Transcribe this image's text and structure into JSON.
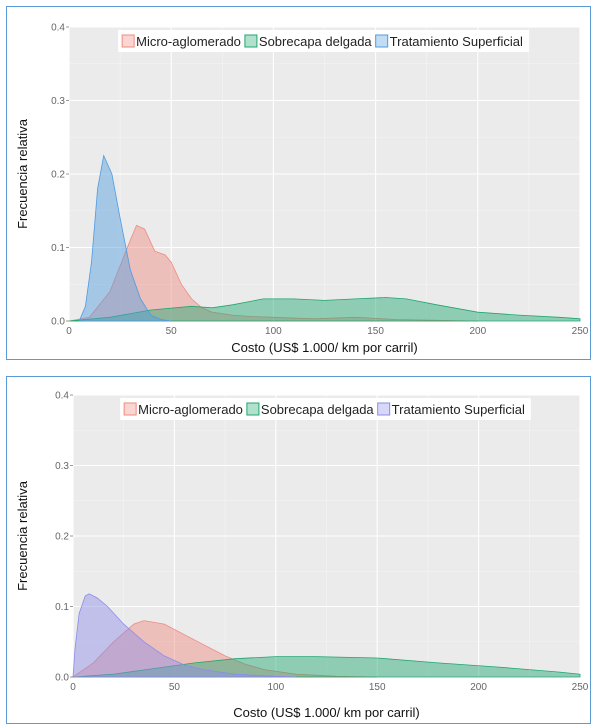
{
  "colors": {
    "micro": "#f08a80",
    "sobrecapa": "#1fa670",
    "tratamiento_top": "#4f9be0",
    "tratamiento_bottom": "#8c8ce8",
    "panel_bg": "#ebebeb",
    "border": "#5b9bd5"
  },
  "chart_data": [
    {
      "type": "area",
      "xlabel": "Costo (US$ 1.000/ km por carril)",
      "ylabel": "Frecuencia relativa",
      "xlim": [
        0,
        250
      ],
      "ylim": [
        0,
        0.4
      ],
      "xticks": [
        "0",
        "50",
        "100",
        "150",
        "200",
        "250"
      ],
      "yticks": [
        "0.0",
        "0.1",
        "0.2",
        "0.3",
        "0.4"
      ],
      "legend_position": "top",
      "grid": true,
      "series": [
        {
          "name": "Micro-aglomerado",
          "color": "micro",
          "points": [
            [
              0,
              0
            ],
            [
              10,
              0.005
            ],
            [
              20,
              0.04
            ],
            [
              30,
              0.11
            ],
            [
              33,
              0.13
            ],
            [
              37,
              0.125
            ],
            [
              42,
              0.095
            ],
            [
              47,
              0.09
            ],
            [
              50,
              0.08
            ],
            [
              55,
              0.05
            ],
            [
              60,
              0.03
            ],
            [
              65,
              0.018
            ],
            [
              70,
              0.012
            ],
            [
              80,
              0.008
            ],
            [
              90,
              0.006
            ],
            [
              100,
              0.005
            ],
            [
              120,
              0.003
            ],
            [
              140,
              0.005
            ],
            [
              160,
              0.002
            ],
            [
              180,
              0.001
            ],
            [
              200,
              0
            ]
          ]
        },
        {
          "name": "Sobrecapa delgada",
          "color": "sobrecapa",
          "points": [
            [
              0,
              0
            ],
            [
              20,
              0.005
            ],
            [
              40,
              0.015
            ],
            [
              60,
              0.02
            ],
            [
              70,
              0.018
            ],
            [
              80,
              0.022
            ],
            [
              95,
              0.03
            ],
            [
              110,
              0.03
            ],
            [
              125,
              0.028
            ],
            [
              140,
              0.03
            ],
            [
              155,
              0.032
            ],
            [
              165,
              0.03
            ],
            [
              180,
              0.022
            ],
            [
              200,
              0.012
            ],
            [
              220,
              0.008
            ],
            [
              240,
              0.005
            ],
            [
              250,
              0.003
            ]
          ]
        },
        {
          "name": "Tratamiento Superficial",
          "color": "tratamiento_top",
          "points": [
            [
              5,
              0
            ],
            [
              8,
              0.02
            ],
            [
              11,
              0.08
            ],
            [
              14,
              0.18
            ],
            [
              17,
              0.225
            ],
            [
              21,
              0.2
            ],
            [
              25,
              0.14
            ],
            [
              30,
              0.07
            ],
            [
              35,
              0.03
            ],
            [
              40,
              0.008
            ],
            [
              45,
              0.002
            ],
            [
              50,
              0
            ]
          ]
        }
      ]
    },
    {
      "type": "area",
      "xlabel": "Costo (US$ 1.000/ km por carril)",
      "ylabel": "Frecuencia relativa",
      "xlim": [
        0,
        250
      ],
      "ylim": [
        0,
        0.4
      ],
      "xticks": [
        "0",
        "50",
        "100",
        "150",
        "200",
        "250"
      ],
      "yticks": [
        "0.0",
        "0.1",
        "0.2",
        "0.3",
        "0.4"
      ],
      "legend_position": "top",
      "grid": true,
      "series": [
        {
          "name": "Micro-aglomerado",
          "color": "micro",
          "points": [
            [
              0,
              0
            ],
            [
              10,
              0.02
            ],
            [
              20,
              0.05
            ],
            [
              30,
              0.075
            ],
            [
              35,
              0.08
            ],
            [
              45,
              0.075
            ],
            [
              55,
              0.06
            ],
            [
              65,
              0.045
            ],
            [
              75,
              0.03
            ],
            [
              85,
              0.018
            ],
            [
              95,
              0.01
            ],
            [
              110,
              0.004
            ],
            [
              130,
              0.001
            ],
            [
              150,
              0
            ]
          ]
        },
        {
          "name": "Sobrecapa delgada",
          "color": "sobrecapa",
          "points": [
            [
              0,
              0
            ],
            [
              20,
              0.004
            ],
            [
              40,
              0.012
            ],
            [
              60,
              0.02
            ],
            [
              80,
              0.026
            ],
            [
              100,
              0.029
            ],
            [
              120,
              0.029
            ],
            [
              150,
              0.027
            ],
            [
              180,
              0.02
            ],
            [
              210,
              0.014
            ],
            [
              240,
              0.007
            ],
            [
              250,
              0.004
            ]
          ]
        },
        {
          "name": "Tratamiento Superficial",
          "color": "tratamiento_bottom",
          "points": [
            [
              0,
              0
            ],
            [
              1,
              0.04
            ],
            [
              3,
              0.09
            ],
            [
              6,
              0.115
            ],
            [
              8,
              0.118
            ],
            [
              12,
              0.112
            ],
            [
              17,
              0.1
            ],
            [
              25,
              0.075
            ],
            [
              35,
              0.05
            ],
            [
              45,
              0.03
            ],
            [
              55,
              0.017
            ],
            [
              65,
              0.01
            ],
            [
              80,
              0.004
            ],
            [
              100,
              0.001
            ],
            [
              110,
              0
            ]
          ]
        }
      ]
    }
  ]
}
